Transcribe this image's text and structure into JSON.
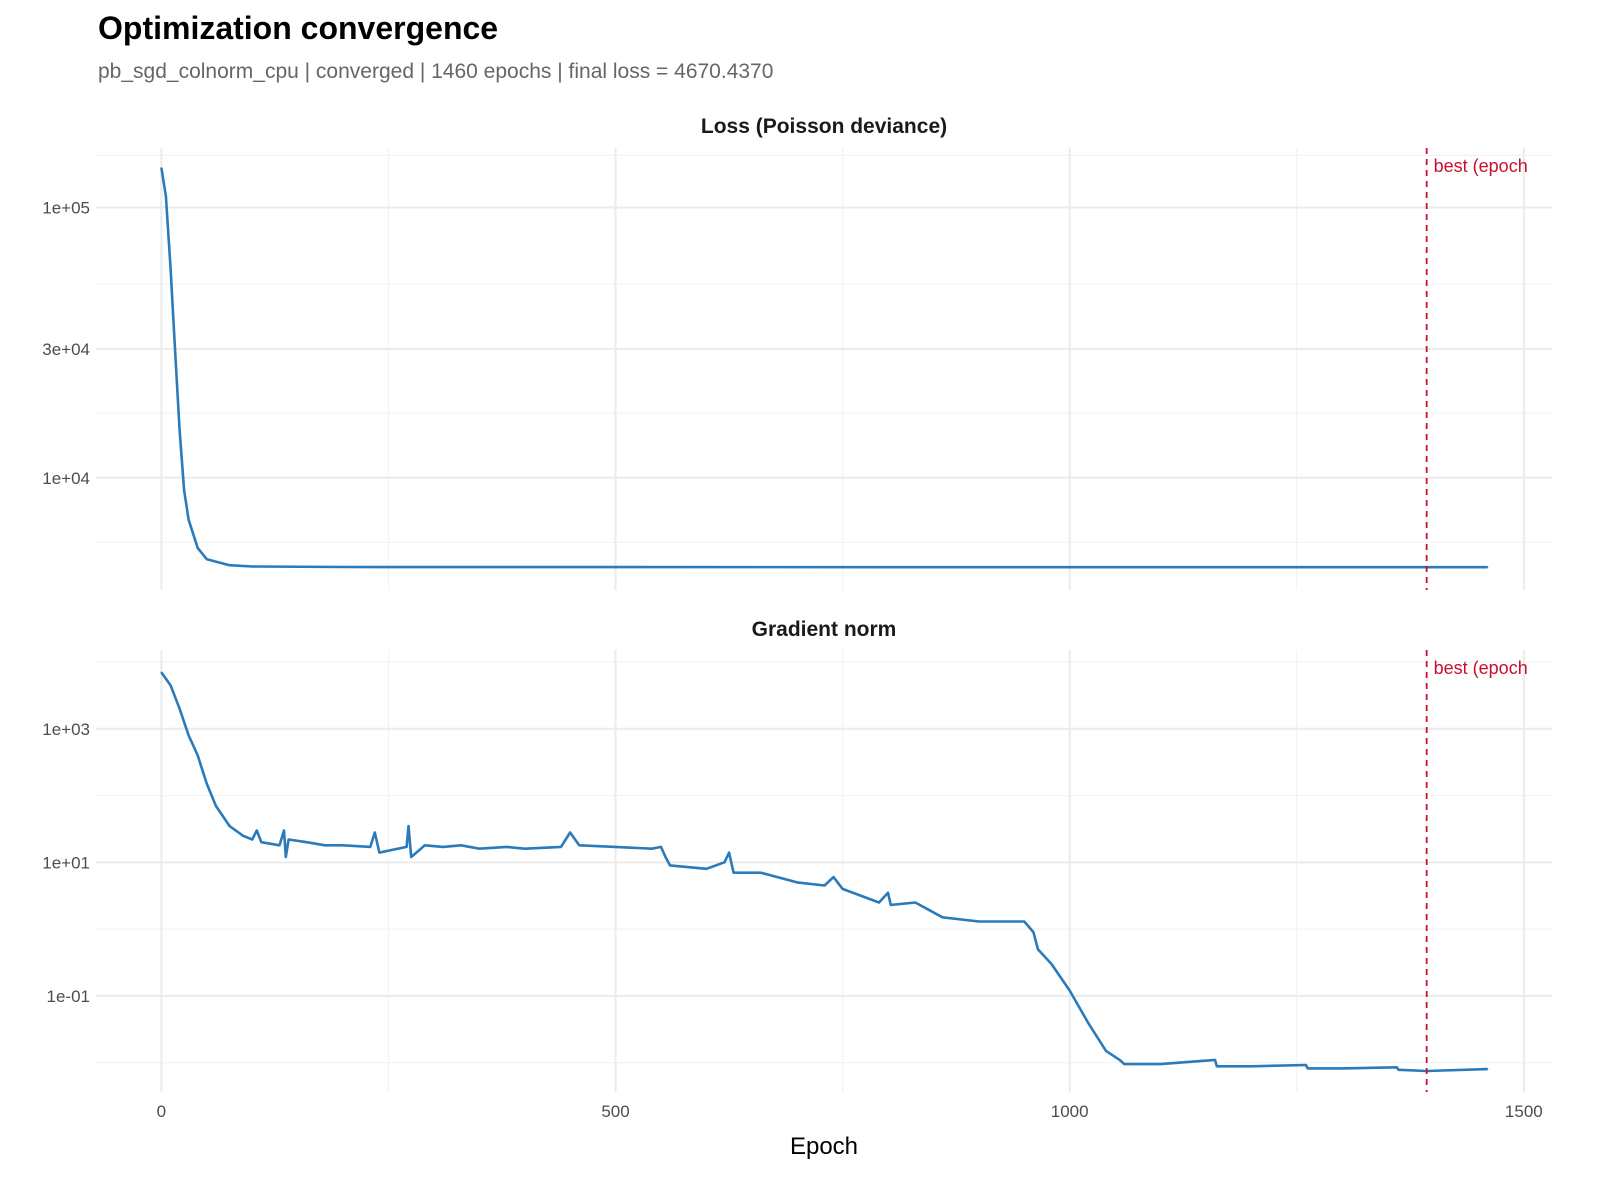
{
  "title": "Optimization convergence",
  "subtitle": "pb_sgd_colnorm_cpu | converged | 1460 epochs | final loss = 4670.4370",
  "colors": {
    "line": "#2b7bba",
    "best": "#c8102e",
    "grid": "#ebebeb"
  },
  "chart_data": {
    "type": "line",
    "xlabel": "Epoch",
    "xlim": [
      -72,
      1531
    ],
    "xticks": [
      0,
      500,
      1000,
      1500
    ],
    "xtick_labels": [
      "0",
      "500",
      "1000",
      "1500"
    ],
    "grid": true,
    "best_epoch": 1393,
    "best_label": "best (epoch",
    "panels": [
      {
        "title": "Loss (Poisson deviance)",
        "yscale": "log10",
        "ylim_log10": [
          3.585,
          5.22
        ],
        "yticks": [
          100000,
          30000,
          10000
        ],
        "ytick_labels": [
          "1e+05",
          "3e+04",
          "1e+04"
        ],
        "series": [
          {
            "name": "loss",
            "x": [
              0,
              5,
              10,
              15,
              20,
              25,
              30,
              40,
              50,
              75,
              100,
              200,
              500,
              1000,
              1460
            ],
            "y": [
              140000,
              110000,
              60000,
              30000,
              15000,
              9000,
              7000,
              5500,
              5000,
              4750,
              4700,
              4680,
              4675,
              4671,
              4670.437
            ]
          }
        ]
      },
      {
        "title": "Gradient norm",
        "yscale": "log10",
        "ylim_log10": [
          -2.44,
          4.18
        ],
        "yticks": [
          1000,
          10,
          0.1
        ],
        "ytick_labels": [
          "1e+03",
          "1e+01",
          "1e-01"
        ],
        "series": [
          {
            "name": "grad_norm",
            "x": [
              0,
              10,
              20,
              30,
              40,
              50,
              60,
              75,
              90,
              100,
              105,
              110,
              130,
              135,
              137,
              140,
              160,
              180,
              200,
              230,
              235,
              240,
              270,
              272,
              275,
              290,
              310,
              330,
              350,
              380,
              400,
              440,
              450,
              460,
              500,
              540,
              550,
              555,
              560,
              600,
              620,
              625,
              630,
              660,
              700,
              730,
              740,
              750,
              790,
              800,
              803,
              830,
              860,
              900,
              950,
              960,
              965,
              980,
              1000,
              1020,
              1040,
              1055,
              1060,
              1100,
              1160,
              1162,
              1200,
              1260,
              1262,
              1300,
              1360,
              1362,
              1393,
              1460
            ],
            "y": [
              7000,
              4500,
              2000,
              800,
              400,
              150,
              70,
              35,
              25,
              22,
              30,
              20,
              18,
              30,
              12,
              22,
              20,
              18,
              18,
              17,
              28,
              14,
              17,
              35,
              12,
              18,
              17,
              18,
              16,
              17,
              16,
              17,
              28,
              18,
              17,
              16,
              17,
              12,
              9,
              8,
              10,
              14,
              7,
              7,
              5,
              4.5,
              6,
              4,
              2.5,
              3.5,
              2.3,
              2.5,
              1.5,
              1.3,
              1.3,
              0.9,
              0.5,
              0.3,
              0.12,
              0.04,
              0.015,
              0.011,
              0.0095,
              0.0095,
              0.011,
              0.0088,
              0.0088,
              0.0092,
              0.0082,
              0.0082,
              0.0085,
              0.0078,
              0.0075,
              0.008
            ]
          }
        ]
      }
    ]
  }
}
